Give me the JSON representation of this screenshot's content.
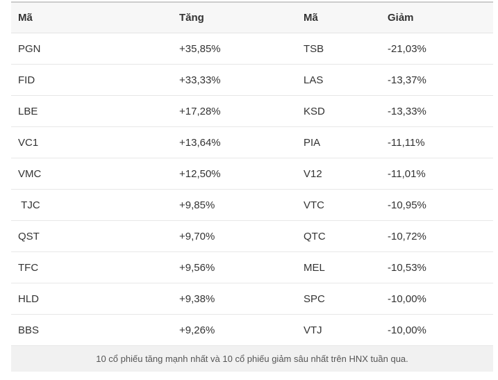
{
  "table": {
    "headers": [
      "Mã",
      "Tăng",
      "Mã",
      "Giảm"
    ],
    "rows": [
      {
        "gainer_code": "PGN",
        "gainer_change": "+35,85%",
        "loser_code": "TSB",
        "loser_change": "-21,03%"
      },
      {
        "gainer_code": "FID",
        "gainer_change": "+33,33%",
        "loser_code": "LAS",
        "loser_change": "-13,37%"
      },
      {
        "gainer_code": "LBE",
        "gainer_change": "+17,28%",
        "loser_code": "KSD",
        "loser_change": "-13,33%"
      },
      {
        "gainer_code": "VC1",
        "gainer_change": "+13,64%",
        "loser_code": "PIA",
        "loser_change": "-11,11%"
      },
      {
        "gainer_code": "VMC",
        "gainer_change": "+12,50%",
        "loser_code": "V12",
        "loser_change": "-11,01%"
      },
      {
        "gainer_code": " TJC",
        "gainer_change": "+9,85%",
        "loser_code": "VTC",
        "loser_change": "-10,95%"
      },
      {
        "gainer_code": "QST",
        "gainer_change": "+9,70%",
        "loser_code": "QTC",
        "loser_change": "-10,72%"
      },
      {
        "gainer_code": "TFC",
        "gainer_change": "+9,56%",
        "loser_code": "MEL",
        "loser_change": "-10,53%"
      },
      {
        "gainer_code": "HLD",
        "gainer_change": "+9,38%",
        "loser_code": "SPC",
        "loser_change": "-10,00%"
      },
      {
        "gainer_code": "BBS",
        "gainer_change": "+9,26%",
        "loser_code": "VTJ",
        "loser_change": "-10,00%"
      }
    ]
  },
  "caption": "10 cổ phiếu tăng mạnh nhất và 10 cổ phiếu giảm sâu nhất trên HNX tuần qua.",
  "chart_data": {
    "type": "table",
    "title": "10 cổ phiếu tăng mạnh nhất và 10 cổ phiếu giảm sâu nhất trên HNX tuần qua.",
    "columns": [
      "Mã",
      "Tăng",
      "Mã",
      "Giảm"
    ],
    "series": [
      {
        "name": "Tăng",
        "categories": [
          "PGN",
          "FID",
          "LBE",
          "VC1",
          "VMC",
          "TJC",
          "QST",
          "TFC",
          "HLD",
          "BBS"
        ],
        "values": [
          35.85,
          33.33,
          17.28,
          13.64,
          12.5,
          9.85,
          9.7,
          9.56,
          9.38,
          9.26
        ]
      },
      {
        "name": "Giảm",
        "categories": [
          "TSB",
          "LAS",
          "KSD",
          "PIA",
          "V12",
          "VTC",
          "QTC",
          "MEL",
          "SPC",
          "VTJ"
        ],
        "values": [
          -21.03,
          -13.37,
          -13.33,
          -11.11,
          -11.01,
          -10.95,
          -10.72,
          -10.53,
          -10.0,
          -10.0
        ]
      }
    ],
    "value_format": "percent, comma decimal separator"
  }
}
